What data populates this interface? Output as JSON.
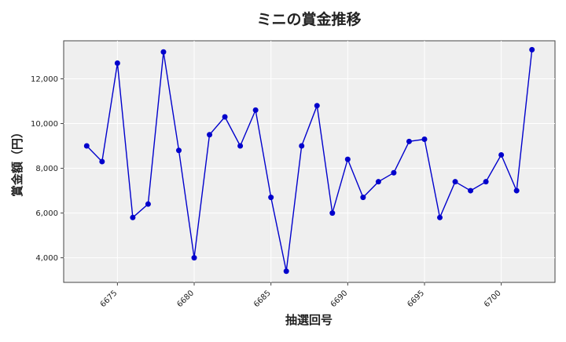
{
  "chart_data": {
    "type": "line",
    "title": "ミニの賞金推移",
    "xlabel": "抽選回号",
    "ylabel": "賞金額（円）",
    "xlim": [
      6671.5,
      6703.5
    ],
    "ylim": [
      2900,
      13700
    ],
    "xticks": [
      6675,
      6680,
      6685,
      6690,
      6695,
      6700
    ],
    "yticks": [
      4000,
      6000,
      8000,
      10000,
      12000
    ],
    "ytick_labels": [
      "4,000",
      "6,000",
      "8,000",
      "10,000",
      "12,000"
    ],
    "grid": true,
    "series": [
      {
        "color": "#0000cc",
        "x": [
          6673,
          6674,
          6675,
          6676,
          6677,
          6678,
          6679,
          6680,
          6681,
          6682,
          6683,
          6684,
          6685,
          6686,
          6687,
          6688,
          6689,
          6690,
          6691,
          6692,
          6693,
          6694,
          6695,
          6696,
          6697,
          6698,
          6699,
          6700,
          6701,
          6702
        ],
        "values": [
          9000,
          8300,
          12700,
          5800,
          6400,
          13200,
          8800,
          4000,
          9500,
          10300,
          9000,
          10600,
          6700,
          3400,
          9000,
          10800,
          6000,
          8400,
          6700,
          7400,
          7800,
          9200,
          9300,
          5800,
          7400,
          7000,
          7400,
          8600,
          7000,
          13300
        ]
      }
    ]
  }
}
